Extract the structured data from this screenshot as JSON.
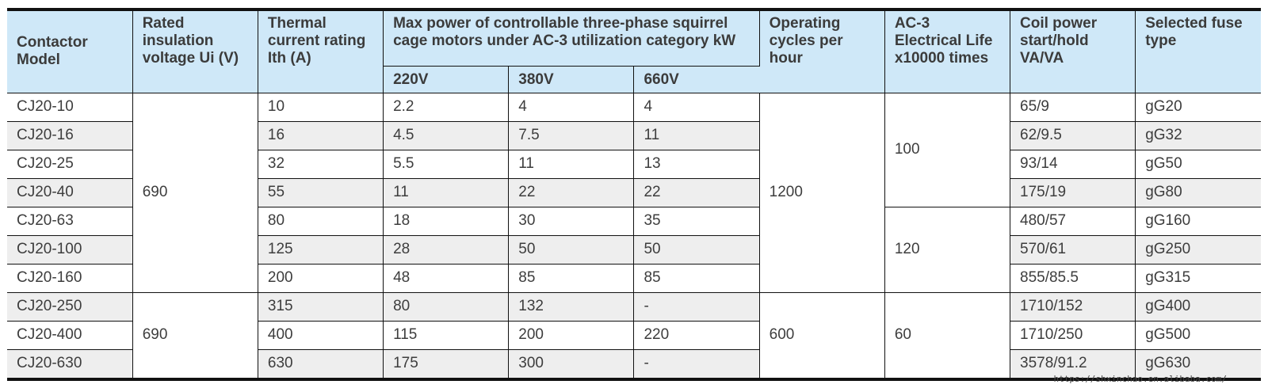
{
  "headers": {
    "model": "Contactor Model",
    "voltage": "Rated insulation voltage Ui (V)",
    "thermal": "Thermal current rating Ith (A)",
    "power_group": "Max power of controllable three-phase squirrel cage motors under AC-3 utilization category kW",
    "v220": "220V",
    "v380": "380V",
    "v660": "660V",
    "cycles": "Operating cycles per hour",
    "life": "AC-3 Electrical Life x10000 times",
    "coil": "Coil power start/hold VA/VA",
    "fuse": "Selected fuse type"
  },
  "rows": [
    {
      "model": "CJ20-10",
      "thermal": "10",
      "p220": "2.2",
      "p380": "4",
      "p660": "4",
      "coil": "65/9",
      "fuse": "gG20"
    },
    {
      "model": "CJ20-16",
      "thermal": "16",
      "p220": "4.5",
      "p380": "7.5",
      "p660": "11",
      "coil": "62/9.5",
      "fuse": "gG32"
    },
    {
      "model": "CJ20-25",
      "thermal": "32",
      "p220": "5.5",
      "p380": "11",
      "p660": "13",
      "coil": "93/14",
      "fuse": "gG50"
    },
    {
      "model": "CJ20-40",
      "thermal": "55",
      "p220": "11",
      "p380": "22",
      "p660": "22",
      "coil": "175/19",
      "fuse": "gG80"
    },
    {
      "model": "CJ20-63",
      "thermal": "80",
      "p220": "18",
      "p380": "30",
      "p660": "35",
      "coil": "480/57",
      "fuse": "gG160"
    },
    {
      "model": "CJ20-100",
      "thermal": "125",
      "p220": "28",
      "p380": "50",
      "p660": "50",
      "coil": "570/61",
      "fuse": "gG250"
    },
    {
      "model": "CJ20-160",
      "thermal": "200",
      "p220": "48",
      "p380": "85",
      "p660": "85",
      "coil": "855/85.5",
      "fuse": "gG315"
    },
    {
      "model": "CJ20-250",
      "thermal": "315",
      "p220": "80",
      "p380": "132",
      "p660": "-",
      "coil": "1710/152",
      "fuse": "gG400"
    },
    {
      "model": "CJ20-400",
      "thermal": "400",
      "p220": "115",
      "p380": "200",
      "p660": "220",
      "coil": "1710/250",
      "fuse": "gG500"
    },
    {
      "model": "CJ20-630",
      "thermal": "630",
      "p220": "175",
      "p380": "300",
      "p660": "-",
      "coil": "3578/91.2",
      "fuse": "gG630"
    }
  ],
  "merged": {
    "voltage_a": "690",
    "voltage_b": "690",
    "cycles_a": "1200",
    "cycles_b": "600",
    "life_a": "100",
    "life_b": "120",
    "life_c": "60"
  },
  "watermark": "https://shxinchao.en.alibaba.com/"
}
